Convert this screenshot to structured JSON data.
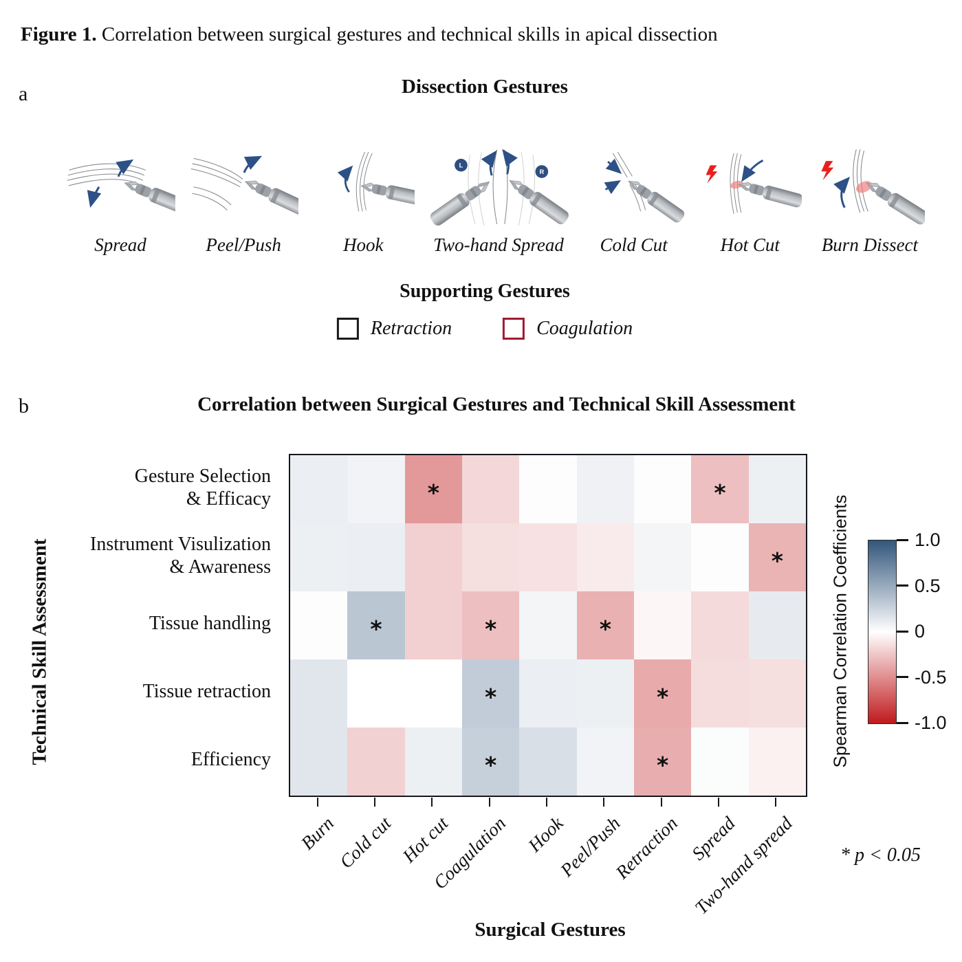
{
  "figure": {
    "label_prefix": "Figure 1.",
    "caption": " Correlation between surgical gestures and technical skills in apical dissection"
  },
  "panel_a": {
    "panel_label": "a",
    "title": "Dissection Gestures",
    "gestures": [
      {
        "id": "spread",
        "icon": "spread-gesture-icon",
        "label": "Spread"
      },
      {
        "id": "peelpush",
        "icon": "peel-push-gesture-icon",
        "label": "Peel/Push"
      },
      {
        "id": "hook",
        "icon": "hook-gesture-icon",
        "label": "Hook"
      },
      {
        "id": "twohand",
        "icon": "two-hand-spread-gesture-icon",
        "label": "Two-hand Spread"
      },
      {
        "id": "coldcut",
        "icon": "cold-cut-gesture-icon",
        "label": "Cold Cut"
      },
      {
        "id": "hotcut",
        "icon": "hot-cut-gesture-icon",
        "label": "Hot Cut"
      },
      {
        "id": "burndissect",
        "icon": "burn-dissect-gesture-icon",
        "label": "Burn Dissect"
      }
    ],
    "supporting": {
      "title": "Supporting Gestures",
      "items": [
        {
          "label": "Retraction",
          "icon": "retraction-box-icon",
          "box_color": "#1a1a1a"
        },
        {
          "label": "Coagulation",
          "icon": "coagulation-box-icon",
          "box_color": "#9e1b32"
        }
      ]
    },
    "accents": {
      "arrow_blue": "#2d5186",
      "bolt_red": "#e8211d",
      "badge_blue": "#2d4e7e"
    }
  },
  "panel_b": {
    "panel_label": "b",
    "title": "Correlation between Surgical Gestures and  Technical Skill Assessment",
    "xlabel": "Surgical Gestures",
    "ylabel": "Technical Skill Assessment",
    "colorbar": {
      "label": "Spearman Correlation Coefficients",
      "ticks": [
        "1.0",
        "0.5",
        "0",
        "-0.5",
        "-1.0"
      ],
      "positive_end_color": "#33567c",
      "mid_color": "#ffffff",
      "negative_end_color": "#c01a1d"
    },
    "significance_note": "* p < 0.05"
  },
  "chart_data": {
    "type": "heatmap",
    "title": "Correlation between Surgical Gestures and  Technical Skill Assessment",
    "xlabel": "Surgical Gestures",
    "ylabel": "Technical Skill Assessment",
    "value_label": "Spearman Correlation Coefficients",
    "value_range": [
      -1.0,
      1.0
    ],
    "colorbar_ticks": [
      1.0,
      0.5,
      0,
      -0.5,
      -1.0
    ],
    "colormap": "diverging blue(+) / white(0) / red(-)",
    "significance_note": "* p < 0.05",
    "x_categories": [
      "Burn",
      "Cold cut",
      "Hot cut",
      "Coagulation",
      "Hook",
      "Peel/Push",
      "Retraction",
      "Spread",
      "Two-hand spread"
    ],
    "y_categories": [
      "Gesture Selection & Efficacy",
      "Instrument Visulization & Awareness",
      "Tissue handling",
      "Tissue retraction",
      "Efficiency"
    ],
    "y_categories_lines": [
      [
        "Gesture Selection",
        "& Efficacy"
      ],
      [
        "Instrument Visulization",
        "& Awareness"
      ],
      [
        "Tissue handling"
      ],
      [
        "Tissue retraction"
      ],
      [
        "Efficiency"
      ]
    ],
    "series": [
      {
        "name": "Gesture Selection & Efficacy",
        "values": [
          0.1,
          0.07,
          -0.45,
          -0.17,
          0.01,
          0.08,
          0.01,
          -0.28,
          0.09
        ],
        "significant": [
          0,
          0,
          1,
          0,
          0,
          0,
          0,
          1,
          0
        ]
      },
      {
        "name": "Instrument Visulization & Awareness",
        "values": [
          0.09,
          0.1,
          -0.21,
          -0.14,
          -0.13,
          -0.09,
          0.06,
          0.01,
          -0.33
        ],
        "significant": [
          0,
          0,
          0,
          0,
          0,
          0,
          0,
          0,
          1
        ]
      },
      {
        "name": "Tissue handling",
        "values": [
          0.01,
          0.34,
          -0.21,
          -0.28,
          0.06,
          -0.34,
          -0.04,
          -0.16,
          0.12
        ],
        "significant": [
          0,
          1,
          0,
          1,
          0,
          1,
          0,
          0,
          0
        ]
      },
      {
        "name": "Tissue retraction",
        "values": [
          0.15,
          0.0,
          0.0,
          0.3,
          0.1,
          0.09,
          -0.37,
          -0.15,
          -0.14
        ],
        "significant": [
          0,
          0,
          0,
          1,
          0,
          0,
          1,
          0,
          0
        ]
      },
      {
        "name": "Efficiency",
        "values": [
          0.15,
          -0.2,
          0.09,
          0.28,
          0.19,
          0.07,
          -0.36,
          0.02,
          -0.06
        ],
        "significant": [
          0,
          0,
          0,
          1,
          0,
          0,
          1,
          0,
          0
        ]
      }
    ]
  }
}
